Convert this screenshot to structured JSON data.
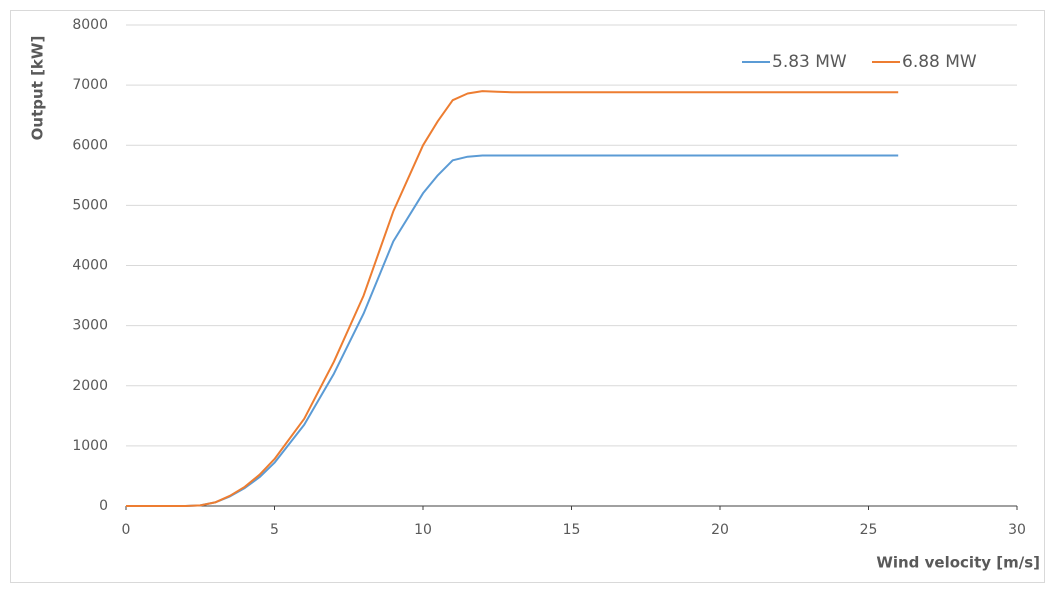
{
  "chart_data": {
    "type": "line",
    "x_label": "Wind velocity [m/s]",
    "y_label": "Output [kW]",
    "x": [
      0,
      1,
      2,
      2.5,
      3,
      3.5,
      4,
      4.5,
      5,
      6,
      7,
      8,
      9,
      10,
      10.5,
      11,
      11.5,
      12,
      12.5,
      13,
      15,
      20,
      26
    ],
    "series": [
      {
        "name": "5.83 MW",
        "color": "#5b9bd5",
        "values": [
          0,
          0,
          0,
          10,
          60,
          160,
          300,
          480,
          720,
          1350,
          2200,
          3200,
          4400,
          5200,
          5500,
          5750,
          5810,
          5830,
          5830,
          5830,
          5830,
          5830,
          5830
        ]
      },
      {
        "name": "6.88 MW",
        "color": "#ed7d31",
        "values": [
          0,
          0,
          0,
          10,
          60,
          170,
          320,
          520,
          780,
          1450,
          2400,
          3500,
          4900,
          6000,
          6400,
          6750,
          6860,
          6900,
          6890,
          6880,
          6880,
          6880,
          6880
        ]
      }
    ],
    "xlim": [
      0,
      30
    ],
    "xticks": [
      0,
      5,
      10,
      15,
      20,
      25,
      30
    ],
    "ylim": [
      0,
      8000
    ],
    "yticks": [
      0,
      1000,
      2000,
      3000,
      4000,
      5000,
      6000,
      7000,
      8000
    ],
    "grid": true,
    "legend": "top-right"
  }
}
